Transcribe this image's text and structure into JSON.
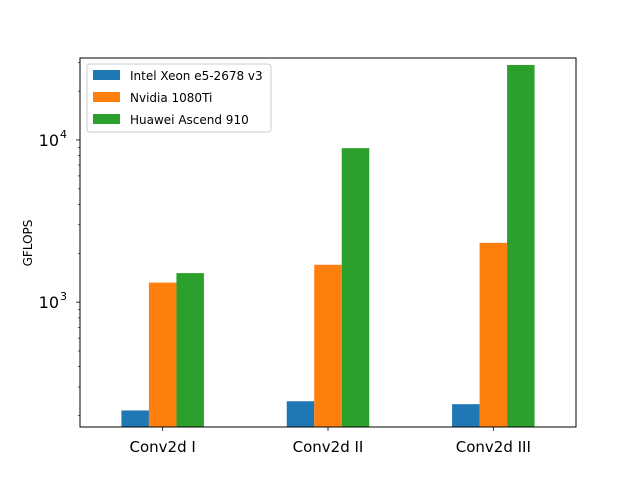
{
  "chart_data": {
    "type": "bar",
    "title": "",
    "xlabel": "",
    "ylabel": "GFLOPS",
    "yscale": "log",
    "ylim": [
      170,
      32000
    ],
    "categories": [
      "Conv2d I",
      "Conv2d II",
      "Conv2d III"
    ],
    "series": [
      {
        "name": "Intel Xeon e5-2678 v3",
        "values": [
          215,
          245,
          235
        ],
        "color": "#1f77b4"
      },
      {
        "name": "Nvidia 1080Ti",
        "values": [
          1320,
          1700,
          2320
        ],
        "color": "#ff7f0e"
      },
      {
        "name": "Huawei Ascend 910",
        "values": [
          1510,
          8900,
          29000
        ],
        "color": "#2ca02c"
      }
    ],
    "yticks": [
      {
        "value": 1000,
        "base": "10",
        "exp": "3"
      },
      {
        "value": 10000,
        "base": "10",
        "exp": "4"
      }
    ],
    "grid": false,
    "legend_position": "top-left"
  }
}
